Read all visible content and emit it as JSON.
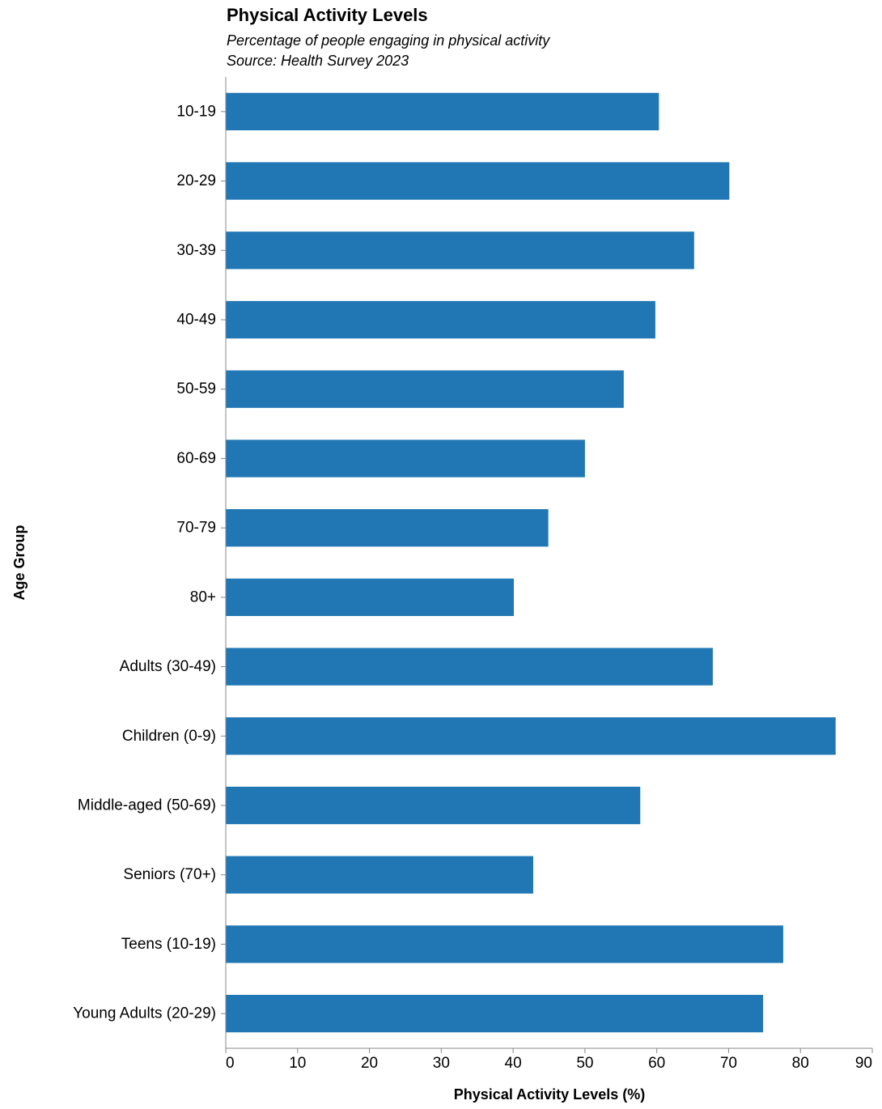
{
  "chart_data": {
    "type": "bar",
    "orientation": "horizontal",
    "title": "Physical Activity Levels",
    "subtitle": [
      "Percentage of people engaging in physical activity",
      "Source: Health Survey 2023"
    ],
    "xlabel": "Physical Activity Levels (%)",
    "ylabel": "Age Group",
    "categories": [
      "10-19",
      "20-29",
      "30-39",
      "40-49",
      "50-59",
      "60-69",
      "70-79",
      "80+",
      "Adults (30-49)",
      "Children (0-9)",
      "Middle-aged (50-69)",
      "Seniors (70+)",
      "Teens (10-19)",
      "Young Adults (20-29)"
    ],
    "values": [
      60.3,
      70.1,
      65.2,
      59.8,
      55.4,
      50.0,
      44.9,
      40.1,
      67.8,
      84.9,
      57.7,
      42.8,
      77.6,
      74.8
    ],
    "xlim": [
      0,
      90
    ],
    "xticks": [
      0,
      10,
      20,
      30,
      40,
      50,
      60,
      70,
      80,
      90
    ],
    "grid": false,
    "legend": "none",
    "bar_color": "#2077b4",
    "axis_color": "#888888"
  }
}
